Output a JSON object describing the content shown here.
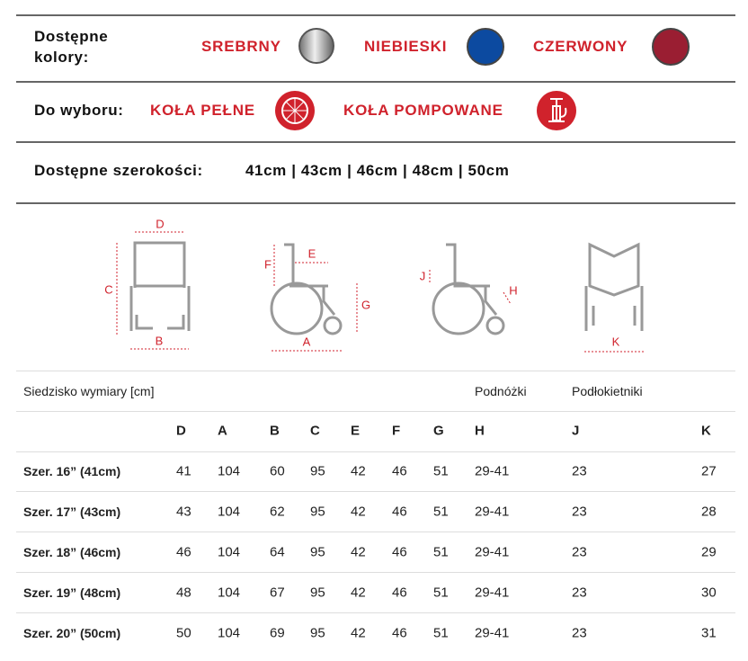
{
  "colors": {
    "label": "Dostępne kolory:",
    "options": [
      "SREBRNY",
      "NIEBIESKI",
      "CZERWONY"
    ]
  },
  "wheels": {
    "label": "Do wyboru:",
    "options": [
      "KOŁA PEŁNE",
      "KOŁA POMPOWANE"
    ]
  },
  "widths": {
    "label": "Dostępne szerokości:",
    "values": "41cm | 43cm | 46cm | 48cm | 50cm"
  },
  "diagram_labels": [
    "D",
    "C",
    "B",
    "F",
    "E",
    "G",
    "A",
    "J",
    "H",
    "K"
  ],
  "table": {
    "group_headers": [
      "Siedzisko wymiary [cm]",
      "Podnóżki",
      "Podłokietniki"
    ],
    "columns": [
      "D",
      "A",
      "B",
      "C",
      "E",
      "F",
      "G",
      "H",
      "J",
      "K"
    ],
    "rows": [
      [
        "Szer. 16” (41cm)",
        41,
        104,
        60,
        95,
        42,
        46,
        51,
        "29-41",
        23,
        27
      ],
      [
        "Szer. 17” (43cm)",
        43,
        104,
        62,
        95,
        42,
        46,
        51,
        "29-41",
        23,
        28
      ],
      [
        "Szer. 18” (46cm)",
        46,
        104,
        64,
        95,
        42,
        46,
        51,
        "29-41",
        23,
        29
      ],
      [
        "Szer. 19” (48cm)",
        48,
        104,
        67,
        95,
        42,
        46,
        51,
        "29-41",
        23,
        30
      ],
      [
        "Szer. 20” (50cm)",
        50,
        104,
        69,
        95,
        42,
        46,
        51,
        "29-41",
        23,
        31
      ]
    ]
  }
}
